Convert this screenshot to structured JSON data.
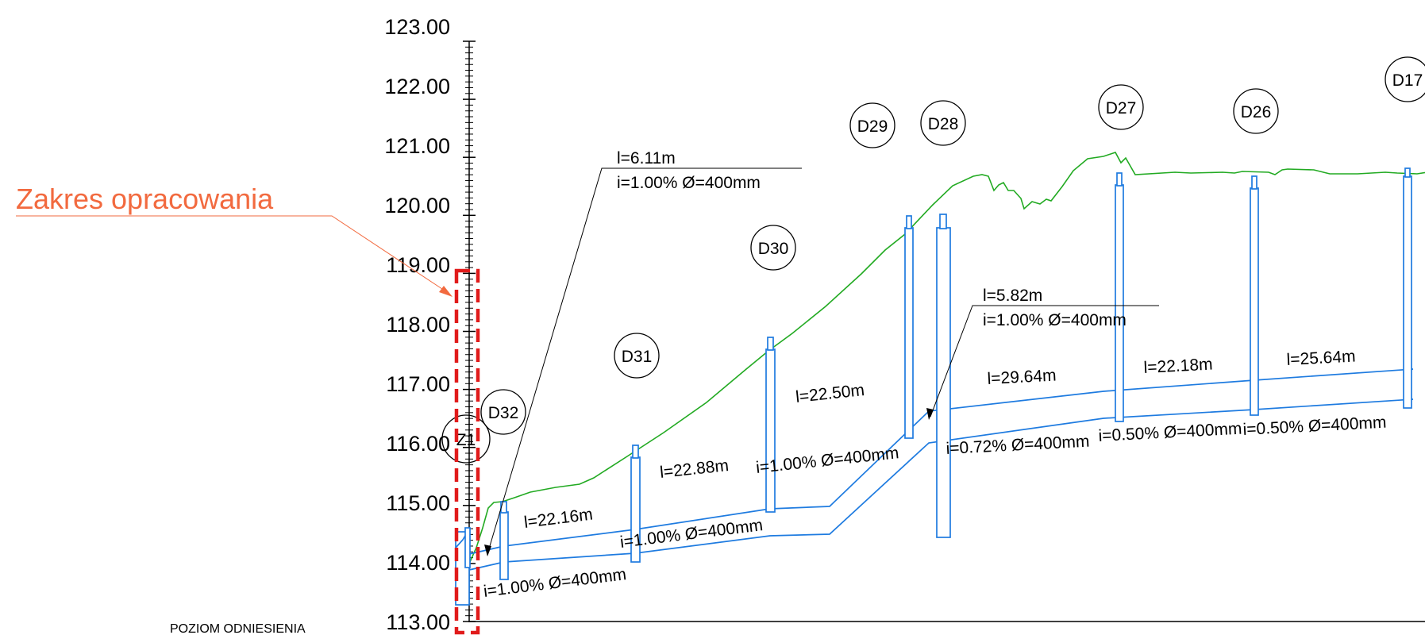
{
  "annotation": {
    "zakres_label": "Zakres opracowania",
    "reference_label": "POZIOM ODNIESIENIA",
    "zakres_color": "#f26a3f",
    "boundary_color": "#e11b1b"
  },
  "colors": {
    "terrain": "#22aa22",
    "pipe": "#1e7be0",
    "axis": "#000000"
  },
  "y_axis": {
    "min": 113.0,
    "max": 123.0,
    "ticks": [
      "113.00",
      "114.00",
      "115.00",
      "116.00",
      "117.00",
      "118.00",
      "119.00",
      "120.00",
      "121.00",
      "122.00",
      "123.00"
    ]
  },
  "nodes": [
    "Z1",
    "D32",
    "D31",
    "D30",
    "D29",
    "D28",
    "D27",
    "D26",
    "D17"
  ],
  "segments": [
    {
      "length": "l=6.11m",
      "slope": "i=1.00% Ø=400mm"
    },
    {
      "length": "l=22.16m",
      "slope": "i=1.00% Ø=400mm"
    },
    {
      "length": "l=22.88m",
      "slope": "i=1.00% Ø=400mm"
    },
    {
      "length": "l=22.50m",
      "slope": "i=1.00% Ø=400mm"
    },
    {
      "length": "l=5.82m",
      "slope": "i=1.00% Ø=400mm"
    },
    {
      "length": "l=29.64m",
      "slope": "i=0.72% Ø=400mm"
    },
    {
      "length": "l=22.18m",
      "slope": "i=0.50% Ø=400mm"
    },
    {
      "length": "l=25.64m",
      "slope": "i=0.50% Ø=400mm"
    }
  ]
}
